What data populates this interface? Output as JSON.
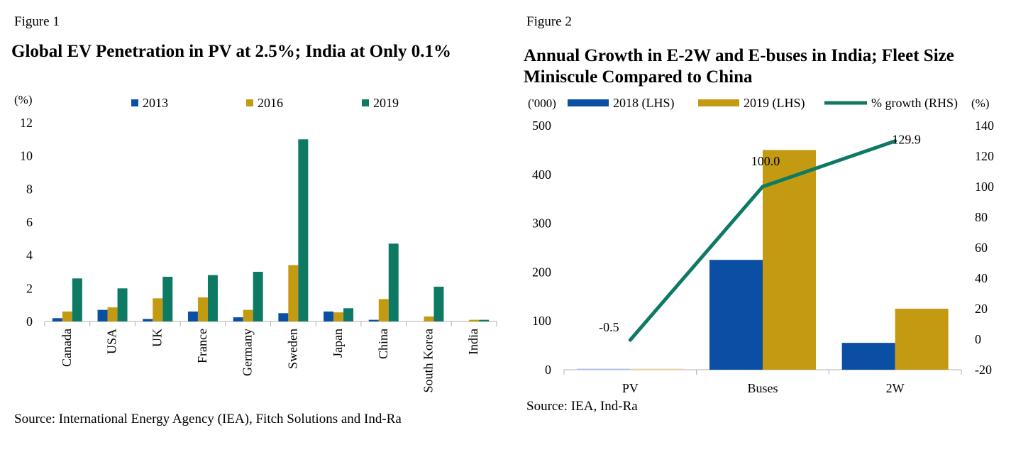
{
  "figure1": {
    "label": "Figure 1",
    "title": "Global EV Penetration in PV at 2.5%; India at Only 0.1%",
    "source": "Source: International Energy Agency (IEA), Fitch Solutions and Ind-Ra"
  },
  "figure2": {
    "label": "Figure 2",
    "title": "Annual Growth in E-2W and E-buses in India; Fleet Size Miniscule Compared to China",
    "source": "Source: IEA, Ind-Ra"
  },
  "chart_data": [
    {
      "type": "bar",
      "title": "Global EV Penetration in PV at 2.5%; India at Only 0.1%",
      "ylabel": "(%)",
      "xlabel": "",
      "ylim": [
        0,
        12
      ],
      "yticks": [
        0,
        2,
        4,
        6,
        8,
        10,
        12
      ],
      "categories": [
        "Canada",
        "USA",
        "UK",
        "France",
        "Germany",
        "Sweden",
        "Japan",
        "China",
        "South Korea",
        "India"
      ],
      "series": [
        {
          "name": "2013",
          "color": "#0a4fa3",
          "values": [
            0.2,
            0.7,
            0.15,
            0.6,
            0.25,
            0.5,
            0.6,
            0.1,
            0.0,
            0.0
          ]
        },
        {
          "name": "2016",
          "color": "#c49a12",
          "values": [
            0.6,
            0.85,
            1.4,
            1.45,
            0.7,
            3.4,
            0.55,
            1.35,
            0.3,
            0.1
          ]
        },
        {
          "name": "2019",
          "color": "#0e7a63",
          "values": [
            2.6,
            2.0,
            2.7,
            2.8,
            3.0,
            11.0,
            0.8,
            4.7,
            2.1,
            0.1
          ]
        }
      ],
      "legend": "top",
      "grid": false
    },
    {
      "type": "bar",
      "title": "Annual Growth in E-2W and E-buses in India; Fleet Size Miniscule Compared to China",
      "ylabel": "('000)",
      "y2label": "(%)",
      "ylim": [
        0,
        500
      ],
      "yticks": [
        0,
        100,
        200,
        300,
        400,
        500
      ],
      "y2lim": [
        -20,
        140
      ],
      "y2ticks": [
        -20,
        0,
        20,
        40,
        60,
        80,
        100,
        120,
        140
      ],
      "categories": [
        "PV",
        "Buses",
        "2W"
      ],
      "series": [
        {
          "name": "2018 (LHS)",
          "type": "bar",
          "color": "#0a4fa3",
          "values": [
            2,
            225,
            55
          ]
        },
        {
          "name": "2019 (LHS)",
          "type": "bar",
          "color": "#c49a12",
          "values": [
            2,
            450,
            125
          ]
        },
        {
          "name": "% growth (RHS)",
          "type": "line",
          "axis": "right",
          "color": "#0e7a63",
          "values": [
            -0.5,
            100.0,
            129.9
          ],
          "labels": [
            "-0.5",
            "100.0",
            "129.9"
          ]
        }
      ],
      "legend": "top",
      "grid": false
    }
  ]
}
